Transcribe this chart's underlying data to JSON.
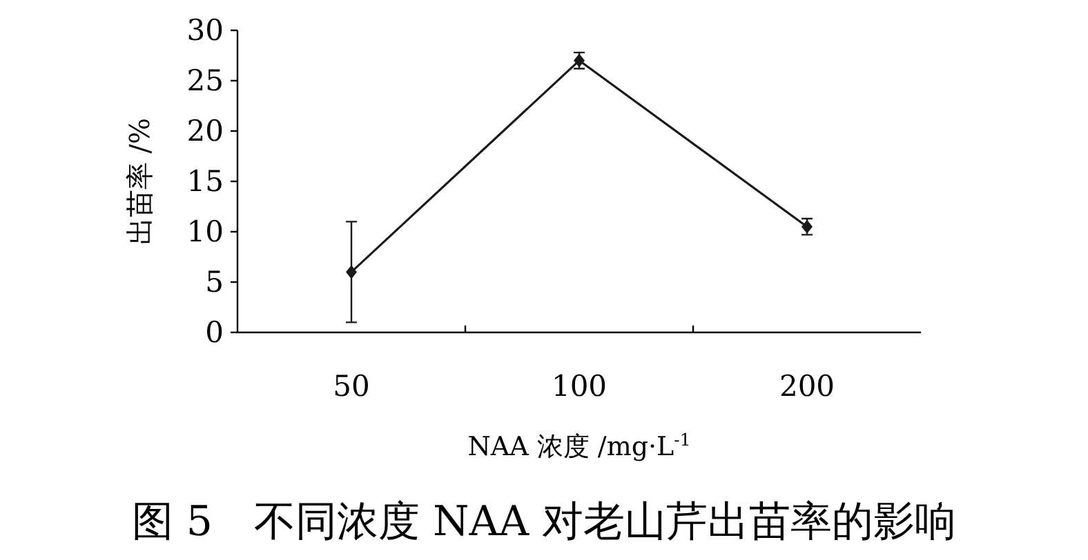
{
  "chart_data": {
    "type": "line",
    "title": "图 5　不同浓度 NAA 对老山芹出苗率的影响",
    "xlabel": "NAA 浓度 /mg·L$^{-1}$",
    "ylabel": "出苗率 /%",
    "categories": [
      "50",
      "100",
      "200"
    ],
    "series": [
      {
        "color": "#1a1a1a",
        "values": [
          6,
          27,
          10.5
        ],
        "errors": [
          5,
          0.8,
          0.8
        ]
      }
    ],
    "ylim": [
      0,
      30
    ],
    "yticks": [
      0,
      5,
      10,
      15,
      20,
      25,
      30
    ],
    "marker": "diamond",
    "line_style": "solid",
    "grid": false
  }
}
